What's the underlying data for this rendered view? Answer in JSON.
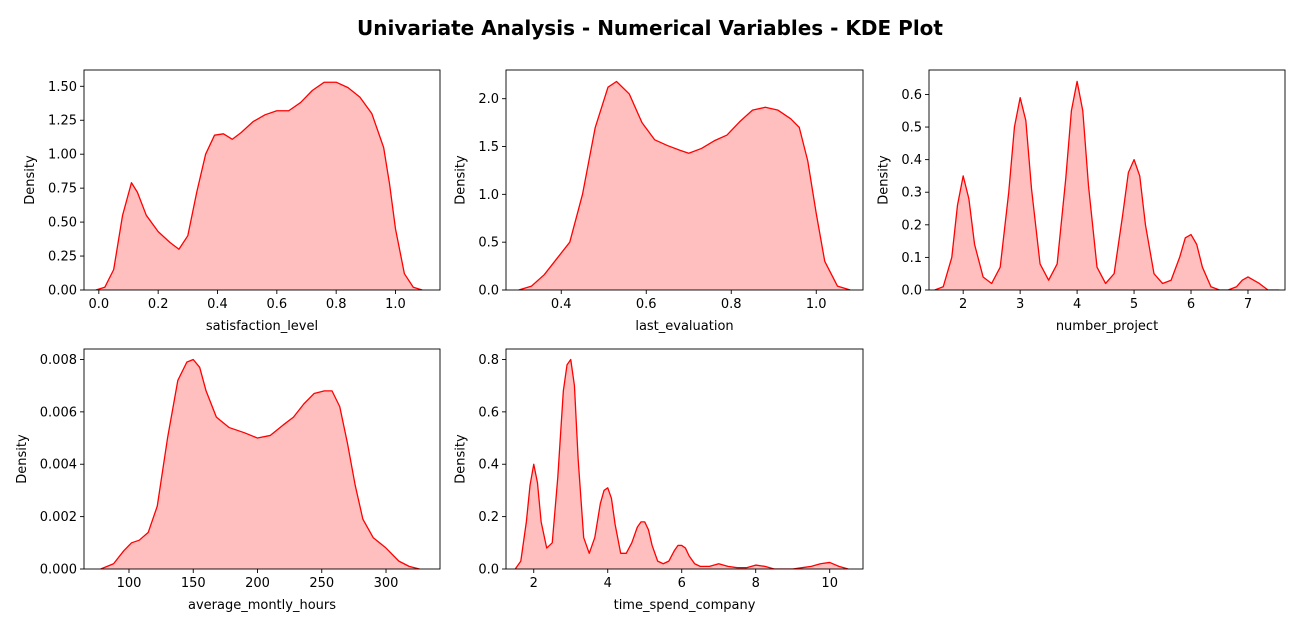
{
  "figure": {
    "title": "Univariate Analysis - Numerical Variables - KDE Plot"
  },
  "style": {
    "line_color": "#ff0000",
    "fill_color": "#ffbfbf"
  },
  "chart_data": [
    {
      "type": "area",
      "xlabel": "satisfaction_level",
      "ylabel": "Density",
      "xlim": [
        -0.05,
        1.15
      ],
      "ylim": [
        0,
        1.62
      ],
      "xticks": [
        0.0,
        0.2,
        0.4,
        0.6,
        0.8,
        1.0
      ],
      "xtick_labels": [
        "0.0",
        "0.2",
        "0.4",
        "0.6",
        "0.8",
        "1.0"
      ],
      "yticks": [
        0,
        0.25,
        0.5,
        0.75,
        1.0,
        1.25,
        1.5
      ],
      "ytick_labels": [
        "0.00",
        "0.25",
        "0.50",
        "0.75",
        "1.00",
        "1.25",
        "1.50"
      ],
      "x": [
        -0.01,
        0.02,
        0.05,
        0.08,
        0.11,
        0.13,
        0.16,
        0.2,
        0.24,
        0.27,
        0.3,
        0.33,
        0.36,
        0.39,
        0.42,
        0.45,
        0.48,
        0.52,
        0.56,
        0.6,
        0.64,
        0.68,
        0.72,
        0.76,
        0.8,
        0.84,
        0.88,
        0.92,
        0.96,
        0.98,
        1.0,
        1.03,
        1.06,
        1.09
      ],
      "y": [
        0,
        0.02,
        0.15,
        0.55,
        0.79,
        0.72,
        0.55,
        0.43,
        0.35,
        0.3,
        0.4,
        0.72,
        1.0,
        1.14,
        1.15,
        1.11,
        1.16,
        1.24,
        1.29,
        1.32,
        1.32,
        1.38,
        1.47,
        1.53,
        1.53,
        1.49,
        1.42,
        1.3,
        1.05,
        0.78,
        0.45,
        0.12,
        0.02,
        0
      ]
    },
    {
      "type": "area",
      "xlabel": "last_evaluation",
      "ylabel": "Density",
      "xlim": [
        0.27,
        1.11
      ],
      "ylim": [
        0,
        2.3
      ],
      "xticks": [
        0.4,
        0.6,
        0.8,
        1.0
      ],
      "xtick_labels": [
        "0.4",
        "0.6",
        "0.8",
        "1.0"
      ],
      "yticks": [
        0,
        0.5,
        1.0,
        1.5,
        2.0
      ],
      "ytick_labels": [
        "0.0",
        "0.5",
        "1.0",
        "1.5",
        "2.0"
      ],
      "x": [
        0.3,
        0.33,
        0.36,
        0.39,
        0.42,
        0.45,
        0.48,
        0.51,
        0.53,
        0.56,
        0.59,
        0.62,
        0.65,
        0.68,
        0.7,
        0.73,
        0.76,
        0.79,
        0.82,
        0.85,
        0.88,
        0.91,
        0.94,
        0.96,
        0.98,
        1.0,
        1.02,
        1.05,
        1.08
      ],
      "y": [
        0,
        0.04,
        0.16,
        0.33,
        0.5,
        1.0,
        1.7,
        2.12,
        2.18,
        2.05,
        1.75,
        1.57,
        1.51,
        1.46,
        1.43,
        1.48,
        1.56,
        1.62,
        1.76,
        1.88,
        1.91,
        1.88,
        1.79,
        1.7,
        1.35,
        0.8,
        0.3,
        0.04,
        0
      ]
    },
    {
      "type": "area",
      "xlabel": "number_project",
      "ylabel": "Density",
      "xlim": [
        1.4,
        7.65
      ],
      "ylim": [
        0,
        0.675
      ],
      "xticks": [
        2,
        3,
        4,
        5,
        6,
        7
      ],
      "xtick_labels": [
        "2",
        "3",
        "4",
        "5",
        "6",
        "7"
      ],
      "yticks": [
        0,
        0.1,
        0.2,
        0.3,
        0.4,
        0.5,
        0.6
      ],
      "ytick_labels": [
        "0.0",
        "0.1",
        "0.2",
        "0.3",
        "0.4",
        "0.5",
        "0.6"
      ],
      "x": [
        1.5,
        1.65,
        1.8,
        1.9,
        2.0,
        2.1,
        2.2,
        2.35,
        2.5,
        2.65,
        2.8,
        2.9,
        3.0,
        3.1,
        3.2,
        3.35,
        3.5,
        3.65,
        3.8,
        3.9,
        4.0,
        4.1,
        4.2,
        4.35,
        4.5,
        4.65,
        4.8,
        4.9,
        5.0,
        5.1,
        5.2,
        5.35,
        5.5,
        5.65,
        5.8,
        5.9,
        6.0,
        6.1,
        6.2,
        6.35,
        6.5,
        6.65,
        6.8,
        6.9,
        7.0,
        7.1,
        7.2,
        7.35,
        7.55
      ],
      "y": [
        0,
        0.01,
        0.1,
        0.26,
        0.35,
        0.28,
        0.14,
        0.04,
        0.02,
        0.07,
        0.3,
        0.5,
        0.59,
        0.52,
        0.31,
        0.08,
        0.03,
        0.08,
        0.34,
        0.55,
        0.64,
        0.55,
        0.32,
        0.07,
        0.02,
        0.05,
        0.23,
        0.36,
        0.4,
        0.35,
        0.2,
        0.05,
        0.02,
        0.03,
        0.1,
        0.16,
        0.17,
        0.14,
        0.07,
        0.01,
        0.0,
        0.0,
        0.01,
        0.03,
        0.04,
        0.03,
        0.02,
        0.0,
        0
      ]
    },
    {
      "type": "area",
      "xlabel": "average_montly_hours",
      "ylabel": "Density",
      "xlim": [
        65,
        342
      ],
      "ylim": [
        0,
        0.0084
      ],
      "xticks": [
        100,
        150,
        200,
        250,
        300
      ],
      "xtick_labels": [
        "100",
        "150",
        "200",
        "250",
        "300"
      ],
      "yticks": [
        0,
        0.002,
        0.004,
        0.006,
        0.008
      ],
      "ytick_labels": [
        "0.000",
        "0.002",
        "0.004",
        "0.006",
        "0.008"
      ],
      "x": [
        78,
        88,
        96,
        102,
        108,
        115,
        122,
        130,
        138,
        145,
        150,
        155,
        160,
        168,
        178,
        190,
        200,
        210,
        220,
        228,
        236,
        244,
        252,
        258,
        264,
        270,
        276,
        282,
        290,
        300,
        310,
        318,
        326
      ],
      "y": [
        0,
        0.0002,
        0.0007,
        0.001,
        0.0011,
        0.0014,
        0.0024,
        0.005,
        0.0072,
        0.0079,
        0.008,
        0.0077,
        0.0068,
        0.0058,
        0.0054,
        0.0052,
        0.005,
        0.0051,
        0.0055,
        0.0058,
        0.0063,
        0.0067,
        0.0068,
        0.0068,
        0.0062,
        0.0048,
        0.0032,
        0.0019,
        0.0012,
        0.0008,
        0.0003,
        0.0001,
        0
      ]
    },
    {
      "type": "area",
      "xlabel": "time_spend_company",
      "ylabel": "Density",
      "xlim": [
        1.25,
        10.9
      ],
      "ylim": [
        0,
        0.84
      ],
      "xticks": [
        2,
        4,
        6,
        8,
        10
      ],
      "xtick_labels": [
        "2",
        "4",
        "6",
        "8",
        "10"
      ],
      "yticks": [
        0,
        0.2,
        0.4,
        0.6,
        0.8
      ],
      "ytick_labels": [
        "0.0",
        "0.2",
        "0.4",
        "0.6",
        "0.8"
      ],
      "x": [
        1.5,
        1.65,
        1.8,
        1.9,
        2.0,
        2.1,
        2.2,
        2.35,
        2.5,
        2.65,
        2.8,
        2.9,
        3.0,
        3.1,
        3.2,
        3.35,
        3.5,
        3.65,
        3.8,
        3.9,
        4.0,
        4.1,
        4.2,
        4.35,
        4.5,
        4.65,
        4.8,
        4.9,
        5.0,
        5.1,
        5.2,
        5.35,
        5.5,
        5.65,
        5.8,
        5.9,
        6.0,
        6.1,
        6.2,
        6.35,
        6.5,
        6.75,
        7.0,
        7.25,
        7.5,
        7.75,
        8.0,
        8.25,
        8.5,
        8.75,
        9.0,
        9.25,
        9.5,
        9.75,
        10.0,
        10.25,
        10.5
      ],
      "y": [
        0,
        0.03,
        0.18,
        0.32,
        0.4,
        0.33,
        0.18,
        0.08,
        0.1,
        0.35,
        0.68,
        0.78,
        0.8,
        0.7,
        0.42,
        0.12,
        0.06,
        0.12,
        0.25,
        0.3,
        0.31,
        0.27,
        0.17,
        0.06,
        0.06,
        0.1,
        0.16,
        0.18,
        0.18,
        0.15,
        0.09,
        0.03,
        0.02,
        0.03,
        0.07,
        0.09,
        0.09,
        0.08,
        0.05,
        0.02,
        0.01,
        0.01,
        0.02,
        0.01,
        0.005,
        0.005,
        0.015,
        0.01,
        0.0,
        0.0,
        0.0,
        0.005,
        0.01,
        0.02,
        0.025,
        0.01,
        0
      ]
    }
  ]
}
